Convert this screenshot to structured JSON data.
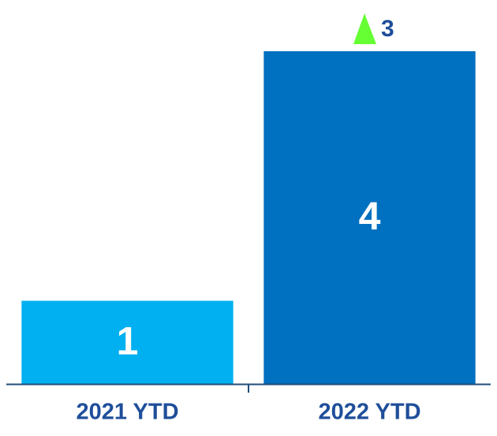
{
  "chart_data": {
    "type": "bar",
    "categories": [
      "2021 YTD",
      "2022 YTD"
    ],
    "values": [
      1,
      4
    ],
    "colors": [
      "#00b0f0",
      "#0070c0"
    ],
    "ylim": [
      0,
      4
    ],
    "difference": 3
  }
}
